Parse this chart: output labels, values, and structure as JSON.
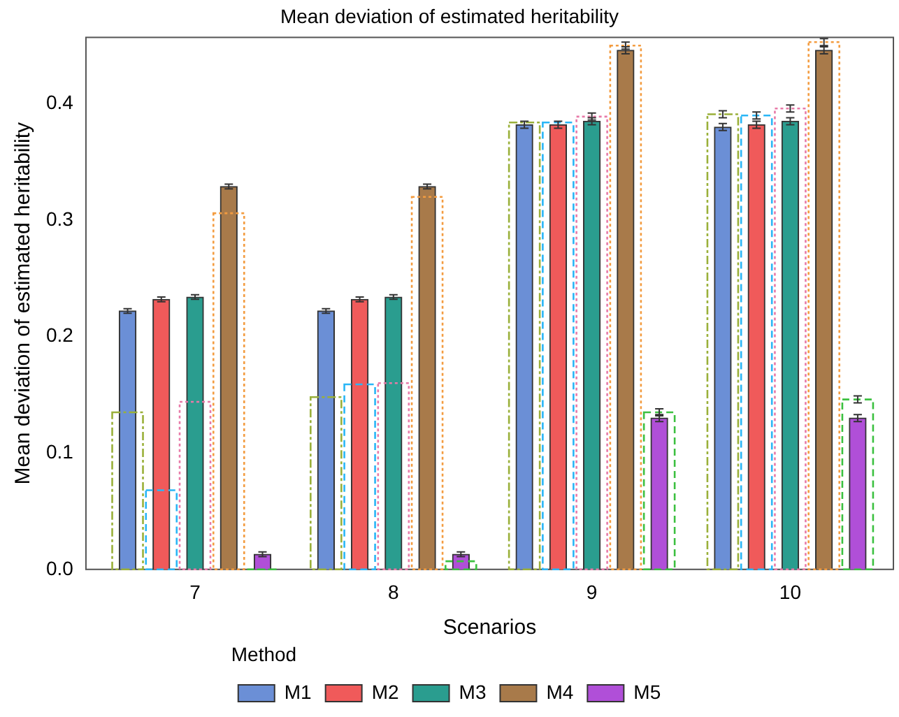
{
  "chart_data": {
    "type": "bar",
    "title": "Mean deviation of estimated heritability",
    "xlabel": "Scenarios",
    "ylabel": "Mean deviation of estimated heritability",
    "legend_title": "Method",
    "legend": "bottom",
    "grid": false,
    "categories": [
      "7",
      "8",
      "9",
      "10"
    ],
    "ylim": [
      0,
      0.457
    ],
    "yticks": [
      {
        "value": 0,
        "label": "0.0"
      },
      {
        "value": 0.1,
        "label": "0.1"
      },
      {
        "value": 0.2,
        "label": "0.2"
      },
      {
        "value": 0.3,
        "label": "0.3"
      },
      {
        "value": 0.4,
        "label": "0.4"
      }
    ],
    "series": [
      {
        "color": "#9ab03a",
        "line_style": "dashdot",
        "values": [
          0.135,
          0.148,
          0.384,
          0.391
        ],
        "errors": [
          null,
          null,
          null,
          0.003
        ]
      },
      {
        "color": "#29b6f6",
        "line_style": "dashed",
        "values": [
          0.068,
          0.159,
          0.384,
          0.39
        ],
        "errors": [
          null,
          null,
          null,
          0.003
        ]
      },
      {
        "color": "#e87aa8",
        "line_style": "dotted",
        "values": [
          0.144,
          0.16,
          0.389,
          0.396
        ],
        "errors": [
          null,
          null,
          0.003,
          0.003
        ]
      },
      {
        "color": "#f39c40",
        "line_style": "dotted",
        "values": [
          0.306,
          0.32,
          0.45,
          0.453
        ],
        "errors": [
          null,
          null,
          0.003,
          0.003
        ]
      },
      {
        "color": "#3cc040",
        "line_style": "dashed",
        "values": [
          0,
          0.007,
          0.135,
          0.146
        ],
        "errors": [
          null,
          null,
          0.003,
          0.003
        ]
      },
      {
        "name": "M1",
        "color": "#6b8fd6",
        "values": [
          0.222,
          0.222,
          0.382,
          0.38
        ],
        "errors": [
          0.002,
          0.002,
          0.003,
          0.003
        ]
      },
      {
        "name": "M2",
        "color": "#f05a5a",
        "values": [
          0.232,
          0.232,
          0.382,
          0.382
        ],
        "errors": [
          0.002,
          0.002,
          0.003,
          0.003
        ]
      },
      {
        "name": "M3",
        "color": "#2a9d8f",
        "values": [
          0.234,
          0.234,
          0.385,
          0.385
        ],
        "errors": [
          0.002,
          0.002,
          0.003,
          0.003
        ]
      },
      {
        "name": "M4",
        "color": "#a87a4a",
        "values": [
          0.329,
          0.329,
          0.446,
          0.446
        ],
        "errors": [
          0.002,
          0.002,
          0.003,
          0.003
        ]
      },
      {
        "name": "M5",
        "color": "#b04fd8",
        "values": [
          0.013,
          0.013,
          0.13,
          0.13
        ],
        "errors": [
          0.002,
          0.002,
          0.003,
          0.003
        ]
      }
    ]
  }
}
